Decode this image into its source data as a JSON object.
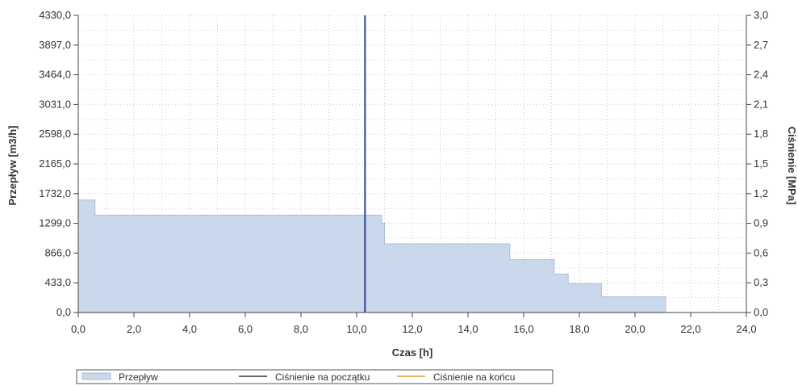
{
  "chart_data": {
    "type": "area",
    "x_axis": {
      "label": "Czas [h]",
      "min": 0,
      "max": 24,
      "ticks": [
        "0,0",
        "2,0",
        "4,0",
        "6,0",
        "8,0",
        "10,0",
        "12,0",
        "14,0",
        "16,0",
        "18,0",
        "20,0",
        "22,0",
        "24,0"
      ]
    },
    "y_left": {
      "label": "Przepływ [m3/h]",
      "min": 0,
      "max": 4330,
      "ticks": [
        "0,0",
        "433,0",
        "866,0",
        "1299,0",
        "1732,0",
        "2165,0",
        "2598,0",
        "3031,0",
        "3464,0",
        "3897,0",
        "4330,0"
      ]
    },
    "y_right": {
      "label": "Ciśnienie [MPa]",
      "min": 0,
      "max": 3,
      "ticks": [
        "0,0",
        "0,3",
        "0,6",
        "0,9",
        "1,2",
        "1,5",
        "1,8",
        "2,1",
        "2,4",
        "2,7",
        "3,0"
      ]
    },
    "grid": true,
    "legend_position": "bottom-left",
    "series": [
      {
        "name": "Przepływ",
        "type": "step-area",
        "color": "#c9d8ea",
        "edge_color": "#a9bfd9",
        "points": [
          [
            0,
            1640
          ],
          [
            0.6,
            1640
          ],
          [
            0.6,
            1420
          ],
          [
            10.9,
            1420
          ],
          [
            10.9,
            1300
          ],
          [
            11.0,
            1300
          ],
          [
            11.0,
            1000
          ],
          [
            15.5,
            1000
          ],
          [
            15.5,
            770
          ],
          [
            17.1,
            770
          ],
          [
            17.1,
            560
          ],
          [
            17.6,
            560
          ],
          [
            17.6,
            420
          ],
          [
            18.8,
            420
          ],
          [
            18.8,
            230
          ],
          [
            21.1,
            230
          ],
          [
            21.1,
            0
          ]
        ]
      },
      {
        "name": "Ciśnienie na początku",
        "type": "line",
        "color": "#333333",
        "points": []
      },
      {
        "name": "Ciśnienie na końcu",
        "type": "line",
        "color": "#e0922a",
        "points": []
      }
    ],
    "marker": {
      "x": 10.3,
      "color": "#2f3f8f"
    }
  }
}
